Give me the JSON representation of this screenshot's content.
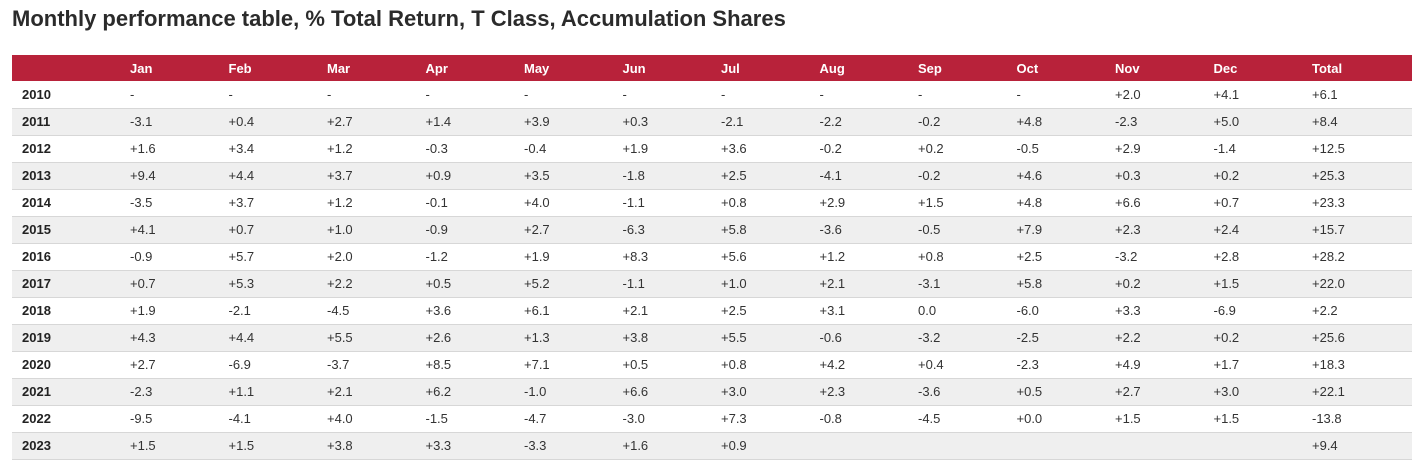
{
  "title": "Monthly performance table, % Total Return, T Class, Accumulation Shares",
  "colors": {
    "header_bg": "#b8223a",
    "header_text": "#ffffff",
    "row_alt_bg": "#efefef"
  },
  "table": {
    "headers": [
      "",
      "Jan",
      "Feb",
      "Mar",
      "Apr",
      "May",
      "Jun",
      "Jul",
      "Aug",
      "Sep",
      "Oct",
      "Nov",
      "Dec",
      "Total"
    ],
    "rows": [
      [
        "2010",
        "-",
        "-",
        "-",
        "-",
        "-",
        "-",
        "-",
        "-",
        "-",
        "-",
        "+2.0",
        "+4.1",
        "+6.1"
      ],
      [
        "2011",
        "-3.1",
        "+0.4",
        "+2.7",
        "+1.4",
        "+3.9",
        "+0.3",
        "-2.1",
        "-2.2",
        "-0.2",
        "+4.8",
        "-2.3",
        "+5.0",
        "+8.4"
      ],
      [
        "2012",
        "+1.6",
        "+3.4",
        "+1.2",
        "-0.3",
        "-0.4",
        "+1.9",
        "+3.6",
        "-0.2",
        "+0.2",
        "-0.5",
        "+2.9",
        "-1.4",
        "+12.5"
      ],
      [
        "2013",
        "+9.4",
        "+4.4",
        "+3.7",
        "+0.9",
        "+3.5",
        "-1.8",
        "+2.5",
        "-4.1",
        "-0.2",
        "+4.6",
        "+0.3",
        "+0.2",
        "+25.3"
      ],
      [
        "2014",
        "-3.5",
        "+3.7",
        "+1.2",
        "-0.1",
        "+4.0",
        "-1.1",
        "+0.8",
        "+2.9",
        "+1.5",
        "+4.8",
        "+6.6",
        "+0.7",
        "+23.3"
      ],
      [
        "2015",
        "+4.1",
        "+0.7",
        "+1.0",
        "-0.9",
        "+2.7",
        "-6.3",
        "+5.8",
        "-3.6",
        "-0.5",
        "+7.9",
        "+2.3",
        "+2.4",
        "+15.7"
      ],
      [
        "2016",
        "-0.9",
        "+5.7",
        "+2.0",
        "-1.2",
        "+1.9",
        "+8.3",
        "+5.6",
        "+1.2",
        "+0.8",
        "+2.5",
        "-3.2",
        "+2.8",
        "+28.2"
      ],
      [
        "2017",
        "+0.7",
        "+5.3",
        "+2.2",
        "+0.5",
        "+5.2",
        "-1.1",
        "+1.0",
        "+2.1",
        "-3.1",
        "+5.8",
        "+0.2",
        "+1.5",
        "+22.0"
      ],
      [
        "2018",
        "+1.9",
        "-2.1",
        "-4.5",
        "+3.6",
        "+6.1",
        "+2.1",
        "+2.5",
        "+3.1",
        "0.0",
        "-6.0",
        "+3.3",
        "-6.9",
        "+2.2"
      ],
      [
        "2019",
        "+4.3",
        "+4.4",
        "+5.5",
        "+2.6",
        "+1.3",
        "+3.8",
        "+5.5",
        "-0.6",
        "-3.2",
        "-2.5",
        "+2.2",
        "+0.2",
        "+25.6"
      ],
      [
        "2020",
        "+2.7",
        "-6.9",
        "-3.7",
        "+8.5",
        "+7.1",
        "+0.5",
        "+0.8",
        "+4.2",
        "+0.4",
        "-2.3",
        "+4.9",
        "+1.7",
        "+18.3"
      ],
      [
        "2021",
        "-2.3",
        "+1.1",
        "+2.1",
        "+6.2",
        "-1.0",
        "+6.6",
        "+3.0",
        "+2.3",
        "-3.6",
        "+0.5",
        "+2.7",
        "+3.0",
        "+22.1"
      ],
      [
        "2022",
        "-9.5",
        "-4.1",
        "+4.0",
        "-1.5",
        "-4.7",
        "-3.0",
        "+7.3",
        "-0.8",
        "-4.5",
        "+0.0",
        "+1.5",
        "+1.5",
        "-13.8"
      ],
      [
        "2023",
        "+1.5",
        "+1.5",
        "+3.8",
        "+3.3",
        "-3.3",
        "+1.6",
        "+0.9",
        "",
        "",
        "",
        "",
        "",
        "+9.4"
      ]
    ]
  }
}
